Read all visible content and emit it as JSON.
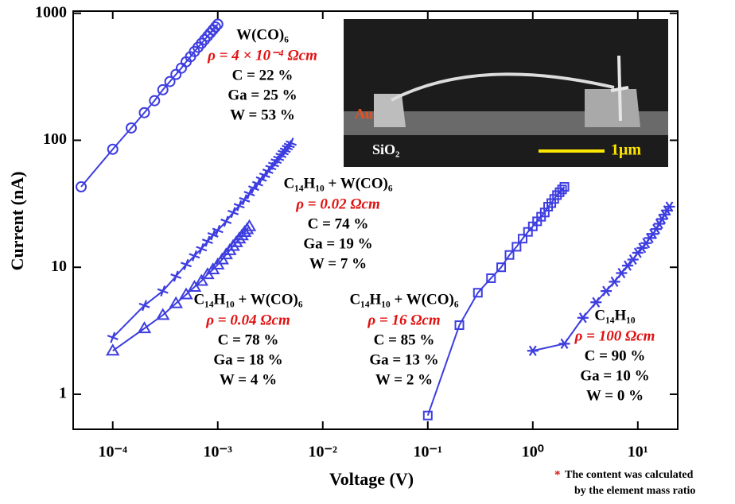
{
  "chart_data": {
    "type": "scatter",
    "xlabel": "Voltage (V)",
    "ylabel": "Current (nA)",
    "xscale": "log",
    "yscale": "log",
    "xlim": [
      4.2e-05,
      24
    ],
    "ylim": [
      0.53,
      1040
    ],
    "xticks": [
      {
        "value": 0.0001,
        "label": "10⁻⁴"
      },
      {
        "value": 0.001,
        "label": "10⁻³"
      },
      {
        "value": 0.01,
        "label": "10⁻²"
      },
      {
        "value": 0.1,
        "label": "10⁻¹"
      },
      {
        "value": 1,
        "label": "10⁰"
      },
      {
        "value": 10,
        "label": "10¹"
      }
    ],
    "yticks": [
      1,
      10,
      100,
      1000
    ],
    "series": [
      {
        "marker": "circle",
        "color": "#3d3de0",
        "x": [
          5e-05,
          0.0001,
          0.00015,
          0.0002,
          0.00025,
          0.0003,
          0.00035,
          0.0004,
          0.00045,
          0.0005,
          0.00055,
          0.0006,
          0.00065,
          0.0007,
          0.00075,
          0.0008,
          0.00085,
          0.0009,
          0.00095,
          0.001
        ],
        "values": [
          43,
          85,
          125,
          165,
          205,
          250,
          290,
          330,
          370,
          415,
          455,
          500,
          540,
          580,
          620,
          660,
          700,
          740,
          780,
          820
        ]
      },
      {
        "marker": "x",
        "color": "#3d3de0",
        "x": [
          0.0001,
          0.0002,
          0.0003,
          0.0004,
          0.0005,
          0.0006,
          0.0007,
          0.0008,
          0.0009,
          0.001,
          0.0012,
          0.0014,
          0.0016,
          0.0018,
          0.002,
          0.0022,
          0.0024,
          0.0026,
          0.0028,
          0.003,
          0.0032,
          0.0034,
          0.0036,
          0.0038,
          0.004,
          0.0042,
          0.0044,
          0.0046,
          0.0048,
          0.005
        ],
        "values": [
          2.8,
          5,
          6.5,
          8.5,
          10.5,
          12.3,
          14,
          16,
          18,
          19.5,
          23,
          27,
          30.5,
          34,
          38,
          42,
          45.5,
          49.5,
          53,
          57,
          61,
          64.5,
          68.5,
          72,
          76,
          80,
          83.5,
          87.5,
          91,
          95
        ]
      },
      {
        "marker": "triangle",
        "color": "#3d3de0",
        "x": [
          0.0001,
          0.0002,
          0.0003,
          0.0004,
          0.0005,
          0.0006,
          0.0007,
          0.0008,
          0.0009,
          0.001,
          0.0011,
          0.0012,
          0.0013,
          0.0014,
          0.0015,
          0.0016,
          0.0017,
          0.0018,
          0.0019,
          0.002
        ],
        "values": [
          2.2,
          3.3,
          4.2,
          5.2,
          6.1,
          7,
          7.8,
          8.8,
          9.6,
          10.5,
          11.5,
          12.6,
          13.6,
          14.7,
          15.7,
          16.8,
          17.8,
          18.9,
          19.9,
          21
        ]
      },
      {
        "marker": "square",
        "color": "#3d3de0",
        "x": [
          0.1,
          0.2,
          0.3,
          0.4,
          0.5,
          0.6,
          0.7,
          0.8,
          0.9,
          1,
          1.1,
          1.2,
          1.3,
          1.4,
          1.5,
          1.6,
          1.7,
          1.8,
          1.9,
          2
        ],
        "values": [
          0.68,
          3.5,
          6.3,
          8.2,
          10,
          12.5,
          14.5,
          16.8,
          19,
          21,
          23,
          25,
          27,
          30,
          32,
          34.5,
          37,
          39,
          41,
          43
        ]
      },
      {
        "marker": "star",
        "color": "#3d3de0",
        "x": [
          1,
          2,
          3,
          4,
          5,
          6,
          7,
          8,
          9,
          10,
          11,
          12,
          13,
          14,
          15,
          16,
          17,
          18,
          19,
          20
        ],
        "values": [
          2.2,
          2.5,
          4,
          5.3,
          6.5,
          7.7,
          9,
          10.3,
          11.5,
          13,
          14.2,
          15.5,
          17,
          18.3,
          20,
          22,
          24,
          26,
          28,
          30
        ]
      }
    ],
    "annotations": [
      {
        "label": "W(CO)₆",
        "resistivity": "ρ = 4 × 10⁻⁴ Ωcm",
        "composition": [
          "C = 22 %",
          "Ga = 25 %",
          "W = 53 %"
        ]
      },
      {
        "label": "C₁₄H₁₀ + W(CO)₆",
        "resistivity": "ρ = 0.02 Ωcm",
        "composition": [
          "C = 74 %",
          "Ga = 19 %",
          "W = 7 %"
        ]
      },
      {
        "label": "C₁₄H₁₀ + W(CO)₆",
        "resistivity": "ρ = 0.04 Ωcm",
        "composition": [
          "C = 78 %",
          "Ga = 18 %",
          "W = 4 %"
        ]
      },
      {
        "label": "C₁₄H₁₀ + W(CO)₆",
        "resistivity": "ρ = 16 Ωcm",
        "composition": [
          "C = 85 %",
          "Ga = 13 %",
          "W = 2 %"
        ]
      },
      {
        "label": "C₁₄H₁₀",
        "resistivity": "ρ = 100 Ωcm",
        "composition": [
          "C = 90 %",
          "Ga = 10 %",
          "W = 0 %"
        ]
      }
    ],
    "inset": {
      "labels": [
        "Au",
        "SiO₂",
        "1μm"
      ]
    },
    "footnote": {
      "mark": "*",
      "lines": [
        "The content was calculated",
        "by the element mass ratio"
      ]
    }
  }
}
